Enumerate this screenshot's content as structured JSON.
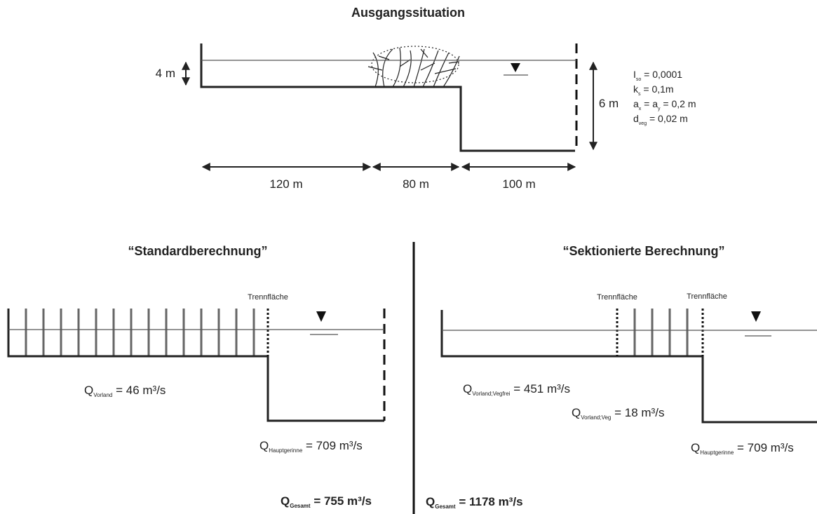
{
  "top": {
    "title": "Ausgangssituation",
    "dims": {
      "height_floodplain": "4 m",
      "height_channel": "6 m",
      "width_left": "120 m",
      "width_veg": "80 m",
      "width_channel": "100 m"
    },
    "params": [
      {
        "main": "I",
        "sub": "so",
        "rest": " = 0,0001"
      },
      {
        "main": "k",
        "sub": "s",
        "rest": " = 0,1m"
      },
      {
        "main": "a",
        "sub": "x",
        "rest": " = a",
        "sub2": "y",
        "rest2": " = 0,2 m"
      },
      {
        "main": "d",
        "sub": "veg",
        "rest": " = 0,02 m"
      }
    ]
  },
  "left": {
    "title": "“Standardberechnung”",
    "divider_label": "Trennfläche",
    "q_vorland": {
      "main": "Q",
      "sub": "Vorland",
      "rest": " = 46 m³/s"
    },
    "q_haupt": {
      "main": "Q",
      "sub": "Hauptgerinne",
      "rest": " = 709 m³/s"
    },
    "q_gesamt": {
      "main": "Q",
      "sub": "Gesamt",
      "rest": " = 755 m³/s"
    }
  },
  "right": {
    "title": "“Sektionierte Berechnung”",
    "divider_labels": [
      "Trennfläche",
      "Trennfläche"
    ],
    "q_vegfrei": {
      "main": "Q",
      "sub": "Vorland;Vegfrei",
      "rest": " = 451 m³/s"
    },
    "q_veg": {
      "main": "Q",
      "sub": "Vorland;Veg",
      "rest": " = 18 m³/s"
    },
    "q_haupt": {
      "main": "Q",
      "sub": "Hauptgerinne",
      "rest": " = 709 m³/s"
    },
    "q_gesamt": {
      "main": "Q",
      "sub": "Gesamt",
      "rest": " = 1178 m³/s"
    }
  }
}
